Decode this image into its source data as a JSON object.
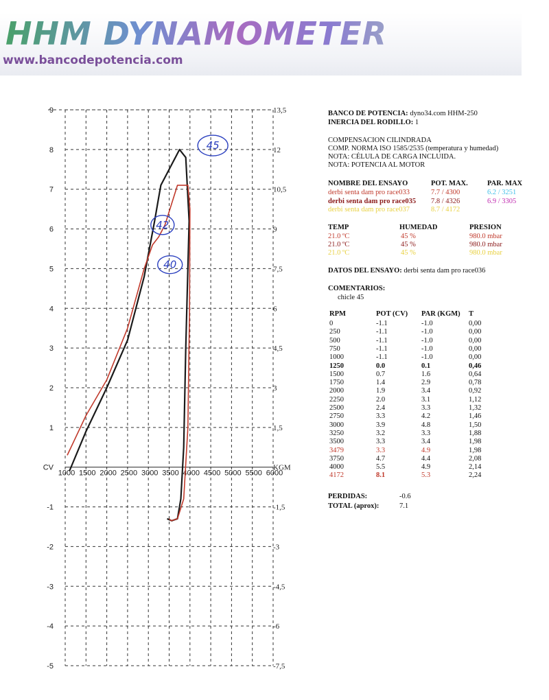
{
  "banner": {
    "title": "HHM DYNAMOMETER",
    "url": "www.bancodepotencia.com"
  },
  "header": {
    "banco_label": "BANCO DE POTENCIA:",
    "banco_value": "dyno34.com HHM-250",
    "inercia_label": "INERCIA DEL RODILLO:",
    "inercia_value": "1"
  },
  "notes": [
    "COMPENSACION CILINDRADA",
    "COMP. NORMA ISO 1585/2535 (temperatura y humedad)",
    "NOTA: CÉLULA DE CARGA INCLUIDA.",
    "NOTA: POTENCIA AL MOTOR"
  ],
  "tests": {
    "headers": [
      "NOMBRE DEL ENSAYO",
      "POT. MAX.",
      "PAR. MAX"
    ],
    "rows": [
      {
        "name": "derbi senta dam pro race033",
        "pot": "7.7 / 4300",
        "par": "6.2 / 3251",
        "color": "#c0392b",
        "par_color": "#43c0e8"
      },
      {
        "name": "derbi senta dam pro race035",
        "pot": "7.8 / 4326",
        "par": "6.9 / 3305",
        "color": "#8b1a1a",
        "par_color": "#c02bb0"
      },
      {
        "name": "derbi senta dam pro race037",
        "pot": "8.7 / 4172",
        "par": "",
        "color": "#e8d040",
        "par_color": "#e8d040"
      }
    ]
  },
  "conditions": {
    "headers": [
      "TEMP",
      "HUMEDAD",
      "PRESION"
    ],
    "rows": [
      {
        "temp": "21.0 ºC",
        "hum": "45 %",
        "pres": "980.0 mbar",
        "color": "#c0392b"
      },
      {
        "temp": "21.0 ºC",
        "hum": "45 %",
        "pres": "980.0 mbar",
        "color": "#8b1a1a"
      },
      {
        "temp": "21.0 ºC",
        "hum": "45 %",
        "pres": "980.0 mbar",
        "color": "#e8d040"
      }
    ]
  },
  "datos": {
    "label": "DATOS DEL ENSAYO:",
    "value": "derbi senta dam pro race036"
  },
  "comentarios": {
    "label": "COMENTARIOS:",
    "value": "chicle 45"
  },
  "table": {
    "headers": [
      "RPM",
      "POT (CV)",
      "PAR (KGM)",
      "T"
    ],
    "rows": [
      [
        "0",
        "-1.1",
        "-1.0",
        "0,00"
      ],
      [
        "250",
        "-1.1",
        "-1.0",
        "0,00"
      ],
      [
        "500",
        "-1.1",
        "-1.0",
        "0,00"
      ],
      [
        "750",
        "-1.1",
        "-1.0",
        "0,00"
      ],
      [
        "1000",
        "-1.1",
        "-1.0",
        "0,00"
      ],
      [
        "1250",
        "0.0",
        "0.1",
        "0,46"
      ],
      [
        "1500",
        "0.7",
        "1.6",
        "0,64"
      ],
      [
        "1750",
        "1.4",
        "2.9",
        "0,78"
      ],
      [
        "2000",
        "1.9",
        "3.4",
        "0,92"
      ],
      [
        "2250",
        "2.0",
        "3.1",
        "1,12"
      ],
      [
        "2500",
        "2.4",
        "3.3",
        "1,32"
      ],
      [
        "2750",
        "3.3",
        "4.2",
        "1,46"
      ],
      [
        "3000",
        "3.9",
        "4.8",
        "1,50"
      ],
      [
        "3250",
        "3.2",
        "3.3",
        "1,88"
      ],
      [
        "3500",
        "3.3",
        "3.4",
        "1,98"
      ],
      [
        "3479",
        "3.3",
        "4.9",
        "1,98"
      ],
      [
        "3750",
        "4.7",
        "4.4",
        "2,08"
      ],
      [
        "4000",
        "5.5",
        "4.9",
        "2,14"
      ],
      [
        "4172",
        "8.1",
        "5.3",
        "2,24"
      ]
    ],
    "bold_row": 5,
    "red_rows": [
      15,
      18
    ]
  },
  "perdidas": {
    "label": "PERDIDAS:",
    "value": "-0.6"
  },
  "total": {
    "label": "TOTAL (aprox):",
    "value": "7.1"
  },
  "chart_data": {
    "type": "line",
    "x_ticks": [
      "1000",
      "1500",
      "2000",
      "2500",
      "3000",
      "3500",
      "4000",
      "4500",
      "5000",
      "5500",
      "6000"
    ],
    "xlim": [
      1000,
      6000
    ],
    "ylim_left": [
      -5,
      9
    ],
    "ylim_right": [
      -7.5,
      13.5
    ],
    "left_ticks": [
      "9",
      "8",
      "7",
      "6",
      "5",
      "4",
      "3",
      "2",
      "1",
      "CV",
      "-1",
      "-2",
      "-3",
      "-4",
      "-5"
    ],
    "right_ticks": [
      "13,5",
      "12",
      "10,5",
      "9",
      "7,5",
      "6",
      "4,5",
      "3",
      "1,5",
      "KGM",
      "-1,5",
      "-3",
      "-4,5",
      "-6",
      "-7,5"
    ],
    "grid": true,
    "annotations": [
      "45",
      "42",
      "40"
    ],
    "series": [
      {
        "color": "#1a1a1a",
        "x": [
          1100,
          1500,
          2000,
          2500,
          2900,
          3150,
          3250,
          3300,
          3500,
          3750,
          3900,
          3980,
          3900,
          3850,
          3780,
          3700,
          3560,
          3450
        ],
        "y": [
          -0.1,
          0.9,
          2.0,
          3.2,
          4.8,
          6.2,
          6.8,
          7.1,
          7.5,
          8.0,
          7.8,
          6.2,
          3.0,
          0.5,
          -0.8,
          -1.3,
          -1.35,
          -1.3
        ]
      },
      {
        "color": "#c0392b",
        "x": [
          1050,
          1500,
          2000,
          2500,
          2900,
          3100,
          3250,
          3400,
          3700,
          3950,
          4000,
          3990,
          3950,
          3850,
          3700,
          3550,
          3500
        ],
        "y": [
          0.3,
          1.3,
          2.2,
          3.5,
          5.0,
          5.6,
          5.8,
          6.1,
          7.1,
          7.1,
          6.5,
          4.0,
          1.0,
          -0.8,
          -1.3,
          -1.35,
          -1.3
        ]
      }
    ]
  }
}
